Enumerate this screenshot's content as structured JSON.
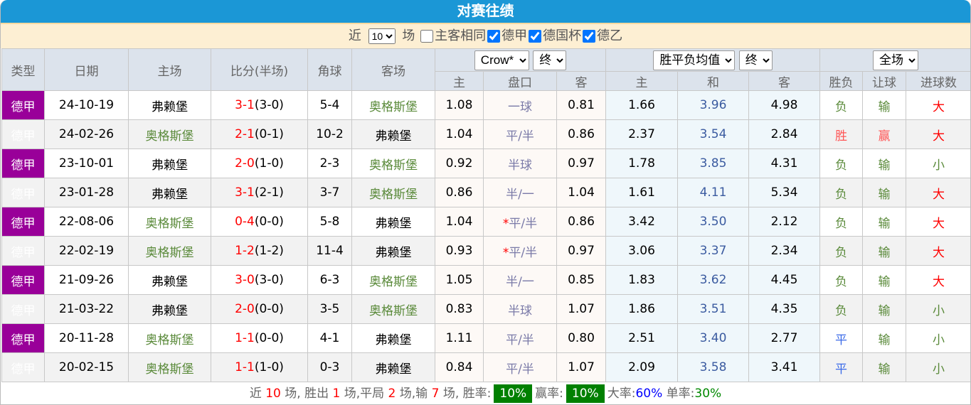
{
  "title": "对赛往绩",
  "filter": {
    "near": "近",
    "count": "10",
    "chang": "场",
    "same_label": "主客相同",
    "same": false,
    "leagues": [
      {
        "label": "德甲",
        "checked": true
      },
      {
        "label": "德国杯",
        "checked": true
      },
      {
        "label": "德乙",
        "checked": true
      }
    ]
  },
  "headers": {
    "type": "类型",
    "date": "日期",
    "home": "主场",
    "score": "比分(半场)",
    "corner": "角球",
    "away": "客场",
    "company": "Crow*",
    "stage1": "终",
    "odds_type": "胜平负均值",
    "stage2": "终",
    "period": "全场",
    "ah": [
      "主",
      "盘口",
      "客"
    ],
    "eu": [
      "主",
      "和",
      "客"
    ],
    "res": [
      "胜负",
      "让球",
      "进球数"
    ]
  },
  "rows": [
    {
      "type": "德甲",
      "date": "24-10-19",
      "home": "弗赖堡",
      "ft": "3-1",
      "ht": "(3-0)",
      "corner": "5-4",
      "away": "奥格斯堡",
      "ah_h": "1.08",
      "line": "一球",
      "star": "",
      "ah_a": "0.81",
      "eu_h": "1.66",
      "eu_d": "3.96",
      "eu_a": "4.98",
      "wl": "负",
      "hc": "输",
      "ou": "大"
    },
    {
      "type": "德甲",
      "date": "24-02-26",
      "home": "奥格斯堡",
      "ft": "2-1",
      "ht": "(0-1)",
      "corner": "10-2",
      "away": "弗赖堡",
      "ah_h": "1.04",
      "line": "平/半",
      "star": "",
      "ah_a": "0.86",
      "eu_h": "2.37",
      "eu_d": "3.54",
      "eu_a": "2.84",
      "wl": "胜",
      "hc": "赢",
      "ou": "大"
    },
    {
      "type": "德甲",
      "date": "23-10-01",
      "home": "弗赖堡",
      "ft": "2-0",
      "ht": "(1-0)",
      "corner": "2-3",
      "away": "奥格斯堡",
      "ah_h": "0.92",
      "line": "半球",
      "star": "",
      "ah_a": "0.97",
      "eu_h": "1.78",
      "eu_d": "3.85",
      "eu_a": "4.31",
      "wl": "负",
      "hc": "输",
      "ou": "小"
    },
    {
      "type": "德甲",
      "date": "23-01-28",
      "home": "弗赖堡",
      "ft": "3-1",
      "ht": "(2-1)",
      "corner": "3-7",
      "away": "奥格斯堡",
      "ah_h": "0.86",
      "line": "半/一",
      "star": "",
      "ah_a": "1.04",
      "eu_h": "1.61",
      "eu_d": "4.11",
      "eu_a": "5.34",
      "wl": "负",
      "hc": "输",
      "ou": "大"
    },
    {
      "type": "德甲",
      "date": "22-08-06",
      "home": "奥格斯堡",
      "ft": "0-4",
      "ht": "(0-0)",
      "corner": "5-8",
      "away": "弗赖堡",
      "ah_h": "1.04",
      "line": "平/半",
      "star": "*",
      "ah_a": "0.86",
      "eu_h": "3.42",
      "eu_d": "3.50",
      "eu_a": "2.12",
      "wl": "负",
      "hc": "输",
      "ou": "大"
    },
    {
      "type": "德甲",
      "date": "22-02-19",
      "home": "奥格斯堡",
      "ft": "1-2",
      "ht": "(1-2)",
      "corner": "11-4",
      "away": "弗赖堡",
      "ah_h": "0.93",
      "line": "平/半",
      "star": "*",
      "ah_a": "0.97",
      "eu_h": "3.06",
      "eu_d": "3.37",
      "eu_a": "2.34",
      "wl": "负",
      "hc": "输",
      "ou": "大"
    },
    {
      "type": "德甲",
      "date": "21-09-26",
      "home": "弗赖堡",
      "ft": "3-0",
      "ht": "(3-0)",
      "corner": "6-3",
      "away": "奥格斯堡",
      "ah_h": "1.05",
      "line": "半/一",
      "star": "",
      "ah_a": "0.85",
      "eu_h": "1.83",
      "eu_d": "3.62",
      "eu_a": "4.45",
      "wl": "负",
      "hc": "输",
      "ou": "大"
    },
    {
      "type": "德甲",
      "date": "21-03-22",
      "home": "弗赖堡",
      "ft": "2-0",
      "ht": "(0-0)",
      "corner": "3-5",
      "away": "奥格斯堡",
      "ah_h": "0.83",
      "line": "半球",
      "star": "",
      "ah_a": "1.07",
      "eu_h": "1.86",
      "eu_d": "3.51",
      "eu_a": "4.35",
      "wl": "负",
      "hc": "输",
      "ou": "小"
    },
    {
      "type": "德甲",
      "date": "20-11-28",
      "home": "奥格斯堡",
      "ft": "1-1",
      "ht": "(0-0)",
      "corner": "4-1",
      "away": "弗赖堡",
      "ah_h": "1.11",
      "line": "平/半",
      "star": "",
      "ah_a": "0.80",
      "eu_h": "2.51",
      "eu_d": "3.40",
      "eu_a": "2.77",
      "wl": "平",
      "hc": "输",
      "ou": "小"
    },
    {
      "type": "德甲",
      "date": "20-02-15",
      "home": "奥格斯堡",
      "ft": "1-1",
      "ht": "(1-0)",
      "corner": "0-3",
      "away": "弗赖堡",
      "ah_h": "0.84",
      "line": "平/半",
      "star": "",
      "ah_a": "1.07",
      "eu_h": "2.09",
      "eu_d": "3.58",
      "eu_a": "3.41",
      "wl": "平",
      "hc": "输",
      "ou": "小"
    }
  ],
  "footer": {
    "t1": "近",
    "n": "10",
    "t2": "场, 胜出",
    "w": "1",
    "t3": "场,平局",
    "d": "2",
    "t4": "场,输",
    "l": "7",
    "t5": "场, 胜率:",
    "win_rate": "10%",
    "t6": "赢率:",
    "cover_rate": "10%",
    "t7": "大率:",
    "over_rate": "60%",
    "t8": "单率:",
    "odd_rate": "30%"
  },
  "colors": {
    "title_bg": "#1b97d6",
    "type_bg": "#990099",
    "badge": "#008000"
  }
}
